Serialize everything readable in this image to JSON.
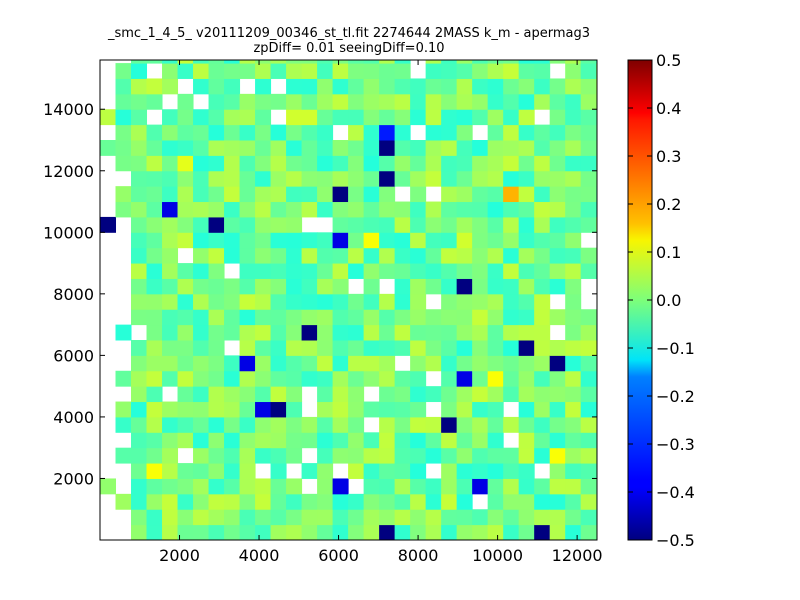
{
  "chart_data": {
    "type": "heatmap",
    "title": [
      "_smc_1_4_5_ v20111209_00346_st_tl.fit 2274644 2MASS k_m - apermag3",
      "zpDiff= 0.01 seeingDiff=0.10"
    ],
    "xlabel": "",
    "ylabel": "",
    "xlim": [
      0,
      12500
    ],
    "ylim": [
      0,
      15600
    ],
    "x_ticks": [
      2000,
      4000,
      6000,
      8000,
      10000,
      12000
    ],
    "x_tick_labels": [
      "2000",
      "4000",
      "6000",
      "8000",
      "10000",
      "12000"
    ],
    "y_ticks": [
      2000,
      4000,
      6000,
      8000,
      10000,
      12000,
      14000
    ],
    "y_tick_labels": [
      "2000",
      "4000",
      "6000",
      "8000",
      "10000",
      "12000",
      "14000"
    ],
    "cell_size": [
      390,
      500
    ],
    "colormap": "jet",
    "clim": [
      -0.5,
      0.5
    ],
    "colorbar_ticks": [
      -0.5,
      -0.4,
      -0.3,
      -0.2,
      -0.1,
      0.0,
      0.1,
      0.2,
      0.3,
      0.4,
      0.5
    ],
    "colorbar_tick_labels": [
      "−0.5",
      "−0.4",
      "−0.3",
      "−0.2",
      "−0.1",
      "0.0",
      "0.1",
      "0.2",
      "0.3",
      "0.4",
      "0.5"
    ],
    "grid": false,
    "notable_cells": [
      {
        "x": 0,
        "y": 10000,
        "value": -0.5
      },
      {
        "x": 2600,
        "y": 10000,
        "value": -0.5
      },
      {
        "x": 6000,
        "y": 11000,
        "value": -0.5
      },
      {
        "x": 7000,
        "y": 12500,
        "value": -0.5
      },
      {
        "x": 7200,
        "y": 11500,
        "value": -0.5
      },
      {
        "x": 8800,
        "y": 8000,
        "value": -0.5
      },
      {
        "x": 5200,
        "y": 6500,
        "value": -0.5
      },
      {
        "x": 4400,
        "y": 4000,
        "value": -0.5
      },
      {
        "x": 8400,
        "y": 3500,
        "value": -0.5
      },
      {
        "x": 10400,
        "y": 6000,
        "value": -0.5
      },
      {
        "x": 11300,
        "y": 5500,
        "value": -0.5
      },
      {
        "x": 7200,
        "y": 0,
        "value": -0.5
      },
      {
        "x": 11100,
        "y": 0,
        "value": -0.5
      },
      {
        "x": 1400,
        "y": 10500,
        "value": -0.4
      },
      {
        "x": 6000,
        "y": 9500,
        "value": -0.4
      },
      {
        "x": 3600,
        "y": 5500,
        "value": -0.4
      },
      {
        "x": 4000,
        "y": 4000,
        "value": -0.4
      },
      {
        "x": 8800,
        "y": 5000,
        "value": -0.4
      },
      {
        "x": 6000,
        "y": 1500,
        "value": -0.4
      },
      {
        "x": 9200,
        "y": 1500,
        "value": -0.4
      },
      {
        "x": 7000,
        "y": 13000,
        "value": -0.35
      },
      {
        "x": 10000,
        "y": 10500,
        "value": -0.05
      },
      {
        "x": 6800,
        "y": 9500,
        "value": 0.12
      },
      {
        "x": 2000,
        "y": 12000,
        "value": 0.1
      },
      {
        "x": 4800,
        "y": 13500,
        "value": 0.08
      },
      {
        "x": 5200,
        "y": 13500,
        "value": 0.08
      },
      {
        "x": 9600,
        "y": 5000,
        "value": 0.12
      },
      {
        "x": 1200,
        "y": 2000,
        "value": 0.12
      },
      {
        "x": 11300,
        "y": 2500,
        "value": 0.12
      },
      {
        "x": 10000,
        "y": 11000,
        "value": 0.2
      },
      {
        "x": 0,
        "y": 13500,
        "value": 0.06
      },
      {
        "x": 8800,
        "y": 9500,
        "value": 0.08
      },
      {
        "x": 11800,
        "y": 6000,
        "value": 0.06
      }
    ]
  }
}
